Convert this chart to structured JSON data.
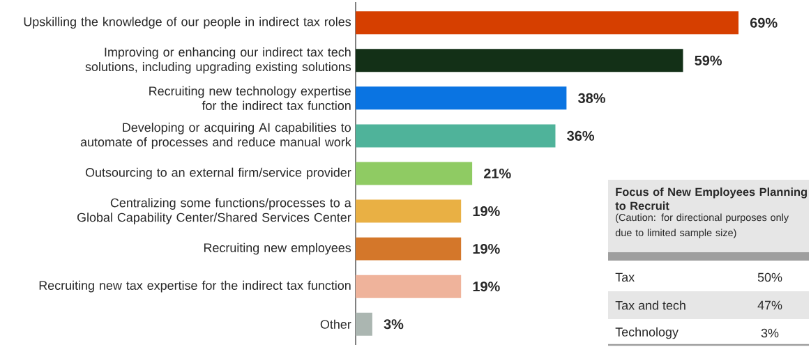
{
  "chart_data": [
    {
      "type": "bar",
      "orientation": "horizontal",
      "categories": [
        "Upskilling the knowledge of our people in indirect tax roles",
        "Improving or enhancing our indirect tax tech solutions, including upgrading existing solutions",
        "Recruiting new technology expertise for the indirect tax function",
        "Developing or acquiring AI capabilities to automate of processes and reduce manual work",
        "Outsourcing to an external firm/service provider",
        "Centralizing some functions/processes to a Global Capability Center/Shared Services Center",
        "Recruiting new employees",
        "Recruiting new tax expertise for the indirect tax function",
        "Other"
      ],
      "values": [
        69,
        59,
        38,
        36,
        21,
        19,
        19,
        19,
        3
      ],
      "value_labels": [
        "69%",
        "59%",
        "38%",
        "36%",
        "21%",
        "19%",
        "19%",
        "19%",
        "3%"
      ],
      "colors": [
        "#d63f00",
        "#133017",
        "#0a74e2",
        "#4fb39a",
        "#8fcb63",
        "#e9b044",
        "#d4772a",
        "#efb39b",
        "#abb6b1"
      ]
    },
    {
      "type": "other",
      "title": "Focus of New Employees Planning to Recruit",
      "subtitle": "(Caution: for directional purposes only due to limited sample size)",
      "categories": [
        "Tax",
        "Tax and tech",
        "Technology"
      ],
      "values": [
        50,
        47,
        3
      ],
      "value_labels": [
        "50%",
        "47%",
        "3%"
      ]
    }
  ]
}
